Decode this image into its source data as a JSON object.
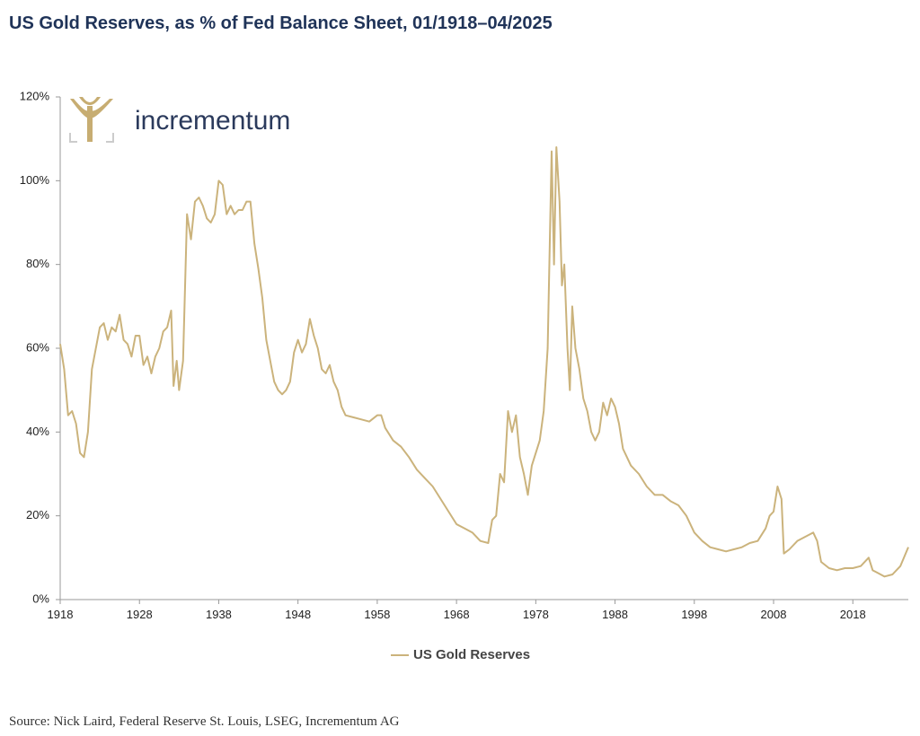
{
  "chart_data": {
    "type": "line",
    "title": "US Gold Reserves, as % of Fed Balance Sheet, 01/1918–04/2025",
    "logo_text": "incrementum",
    "source": "Source: Nick Laird, Federal Reserve St. Louis, LSEG, Incrementum AG",
    "x": [
      1918,
      1918.5,
      1919,
      1919.5,
      1920,
      1920.5,
      1921,
      1921.5,
      1922,
      1922.5,
      1923,
      1923.5,
      1924,
      1924.5,
      1925,
      1925.5,
      1926,
      1926.5,
      1927,
      1927.5,
      1928,
      1928.5,
      1929,
      1929.5,
      1930,
      1930.5,
      1931,
      1931.5,
      1932,
      1932.3,
      1932.7,
      1933,
      1933.5,
      1934,
      1934.5,
      1935,
      1935.5,
      1936,
      1936.5,
      1937,
      1937.5,
      1938,
      1938.5,
      1939,
      1939.5,
      1940,
      1940.5,
      1941,
      1941.5,
      1942,
      1942.5,
      1943,
      1943.5,
      1944,
      1944.5,
      1945,
      1945.5,
      1946,
      1946.5,
      1947,
      1947.5,
      1948,
      1948.5,
      1949,
      1949.5,
      1950,
      1950.5,
      1951,
      1951.5,
      1952,
      1952.5,
      1953,
      1953.5,
      1954,
      1955,
      1956,
      1957,
      1958,
      1958.5,
      1959,
      1960,
      1961,
      1962,
      1963,
      1964,
      1965,
      1966,
      1967,
      1968,
      1969,
      1970,
      1971,
      1972,
      1972.5,
      1973,
      1973.5,
      1974,
      1974.5,
      1975,
      1975.5,
      1976,
      1976.5,
      1977,
      1977.5,
      1978,
      1978.5,
      1979,
      1979.5,
      1980,
      1980.3,
      1980.6,
      1981,
      1981.3,
      1981.6,
      1982,
      1982.3,
      1982.6,
      1983,
      1983.5,
      1984,
      1984.5,
      1985,
      1985.5,
      1986,
      1986.5,
      1987,
      1987.5,
      1988,
      1988.5,
      1989,
      1989.5,
      1990,
      1991,
      1992,
      1993,
      1994,
      1995,
      1996,
      1997,
      1998,
      1999,
      2000,
      2001,
      2002,
      2003,
      2004,
      2005,
      2006,
      2007,
      2007.5,
      2008,
      2008.5,
      2009,
      2009.3,
      2010,
      2011,
      2012,
      2013,
      2013.5,
      2014,
      2015,
      2016,
      2017,
      2018,
      2019,
      2020,
      2020.5,
      2021,
      2022,
      2023,
      2024,
      2025
    ],
    "series": [
      {
        "name": "US Gold Reserves",
        "color": "#cbb37c",
        "values": [
          61,
          55,
          44,
          45,
          42,
          35,
          34,
          40,
          55,
          60,
          65,
          66,
          62,
          65,
          64,
          68,
          62,
          61,
          58,
          63,
          63,
          56,
          58,
          54,
          58,
          60,
          64,
          65,
          69,
          51,
          57,
          50,
          57,
          92,
          86,
          95,
          96,
          94,
          91,
          90,
          92,
          100,
          99,
          92,
          94,
          92,
          93,
          93,
          95,
          95,
          85,
          79,
          72,
          62,
          57,
          52,
          50,
          49,
          50,
          52,
          59,
          62,
          59,
          61,
          67,
          63,
          60,
          55,
          54,
          56,
          52,
          50,
          46,
          44,
          43.5,
          43,
          42.5,
          44,
          44,
          41,
          38,
          36.5,
          34,
          31,
          29,
          27,
          24,
          21,
          18,
          17,
          16,
          14,
          13.5,
          19,
          20,
          30,
          28,
          45,
          40,
          44,
          34,
          30,
          25,
          32,
          35,
          38,
          45,
          60,
          107,
          80,
          108,
          95,
          75,
          80,
          60,
          50,
          70,
          60,
          55,
          48,
          45,
          40,
          38,
          40,
          47,
          44,
          48,
          46,
          42,
          36,
          34,
          32,
          30,
          27,
          25,
          25,
          23.5,
          22.5,
          20,
          16,
          14,
          12.5,
          12,
          11.5,
          12,
          12.5,
          13.5,
          14,
          17,
          20,
          21,
          27,
          24,
          11,
          12,
          14,
          15,
          16,
          14,
          9,
          7.5,
          7,
          7.5,
          7.5,
          8,
          10,
          7,
          6.5,
          5.5,
          6,
          8,
          12.5
        ]
      }
    ],
    "xlim": [
      1918,
      2025
    ],
    "xticks": [
      1918,
      1928,
      1938,
      1948,
      1958,
      1968,
      1978,
      1988,
      1998,
      2008,
      2018
    ],
    "ylim": [
      0,
      120
    ],
    "yticks": [
      {
        "value": 0,
        "label": "0%"
      },
      {
        "value": 20,
        "label": "20%"
      },
      {
        "value": 40,
        "label": "40%"
      },
      {
        "value": 60,
        "label": "60%"
      },
      {
        "value": 80,
        "label": "80%"
      },
      {
        "value": 100,
        "label": "100%"
      },
      {
        "value": 120,
        "label": "120%"
      }
    ],
    "legend": "bottom"
  }
}
